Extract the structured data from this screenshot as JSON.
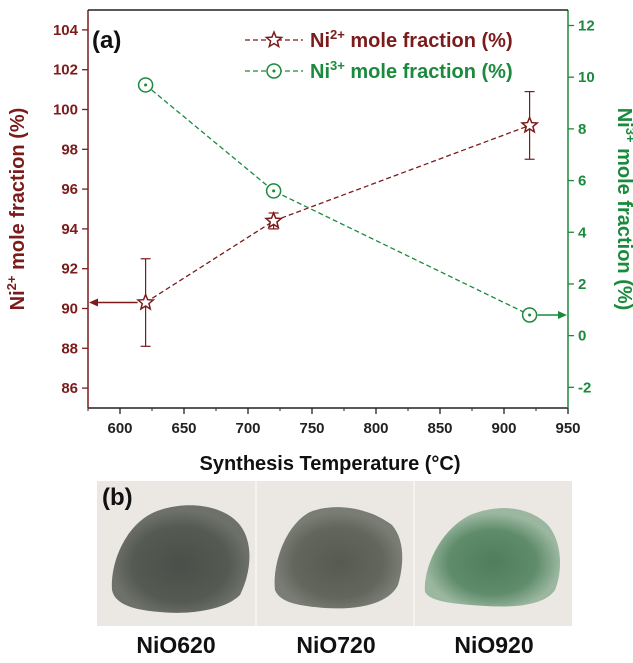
{
  "chart_data": {
    "type": "line",
    "panel_label": "(a)",
    "xlabel": "Synthesis Temperature (°C)",
    "xlim": [
      575,
      950
    ],
    "x_ticks": [
      600,
      650,
      700,
      750,
      800,
      850,
      900,
      950
    ],
    "y_left": {
      "label_base": "Ni",
      "label_sup": "2+",
      "label_rest": " mole fraction (%)",
      "lim": [
        85,
        105
      ],
      "ticks": [
        86,
        88,
        90,
        92,
        94,
        96,
        98,
        100,
        102,
        104
      ],
      "color": "#7b1b1b"
    },
    "y_right": {
      "label_base": "Ni",
      "label_sup": "3+",
      "label_rest": " mole fraction (%)",
      "lim": [
        -2.8,
        12.6
      ],
      "ticks": [
        -2,
        0,
        2,
        4,
        6,
        8,
        10,
        12
      ],
      "color": "#1a8a3c"
    },
    "series": [
      {
        "name_base": "Ni",
        "name_sup": "2+",
        "name_rest": " mole fraction (%)",
        "axis": "left",
        "marker": "star",
        "color": "#7b1b1b",
        "x": [
          620,
          720,
          920
        ],
        "y": [
          90.3,
          94.4,
          99.2
        ],
        "err": [
          2.2,
          0.4,
          1.7
        ]
      },
      {
        "name_base": "Ni",
        "name_sup": "3+",
        "name_rest": " mole fraction (%)",
        "axis": "right",
        "marker": "circle-dot",
        "color": "#1a8a3c",
        "x": [
          620,
          720,
          920
        ],
        "y": [
          9.7,
          5.6,
          0.8
        ]
      }
    ],
    "legend_position": "top-right"
  },
  "photo": {
    "panel_label": "(b)",
    "samples": [
      "NiO620",
      "NiO720",
      "NiO920"
    ],
    "colors": [
      "#4c514a",
      "#5a5e55",
      "#5f8a6a"
    ]
  }
}
